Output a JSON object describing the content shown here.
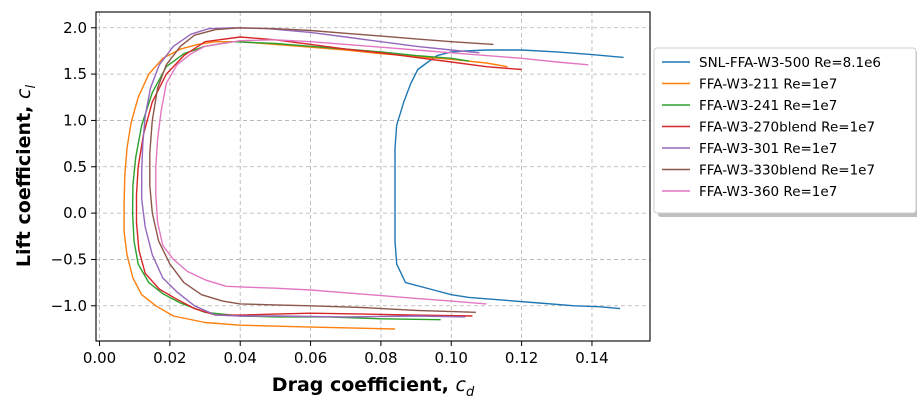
{
  "chart_data": {
    "type": "line",
    "xlabel": "Drag coefficient, ",
    "xlabel_symbol": "c",
    "xlabel_sub": "d",
    "ylabel": "Lift coefficient, ",
    "ylabel_symbol": "c",
    "ylabel_sub": "l",
    "xlim": [
      -0.001,
      0.1565
    ],
    "ylim": [
      -1.38,
      2.17
    ],
    "xticks": [
      0.0,
      0.02,
      0.04,
      0.06,
      0.08,
      0.1,
      0.12,
      0.14
    ],
    "xtick_labels": [
      "0.00",
      "0.02",
      "0.04",
      "0.06",
      "0.08",
      "0.10",
      "0.12",
      "0.14"
    ],
    "yticks": [
      -1.0,
      -0.5,
      0.0,
      0.5,
      1.0,
      1.5,
      2.0
    ],
    "ytick_labels": [
      "−1.0",
      "−0.5",
      "0.0",
      "0.5",
      "1.0",
      "1.5",
      "2.0"
    ],
    "grid": true,
    "legend_position": "outside-right",
    "series": [
      {
        "name": "SNL-FFA-W3-500 Re=8.1e6",
        "color": "#1f77b4",
        "x": [
          0.148,
          0.142,
          0.135,
          0.125,
          0.115,
          0.105,
          0.1,
          0.095,
          0.087,
          0.0845,
          0.084,
          0.084,
          0.084,
          0.084,
          0.0845,
          0.0865,
          0.0885,
          0.0905,
          0.093,
          0.096,
          0.1,
          0.104,
          0.11,
          0.12,
          0.13,
          0.14,
          0.149
        ],
        "y": [
          -1.03,
          -1.01,
          -1.0,
          -0.97,
          -0.94,
          -0.91,
          -0.88,
          -0.83,
          -0.75,
          -0.55,
          -0.3,
          0.0,
          0.3,
          0.7,
          0.95,
          1.2,
          1.4,
          1.55,
          1.62,
          1.7,
          1.74,
          1.75,
          1.76,
          1.76,
          1.74,
          1.71,
          1.68
        ]
      },
      {
        "name": "FFA-W3-211 Re=1e7",
        "color": "#ff7f0e",
        "x": [
          0.084,
          0.06,
          0.04,
          0.03,
          0.021,
          0.016,
          0.012,
          0.0095,
          0.0078,
          0.007,
          0.007,
          0.0072,
          0.0078,
          0.009,
          0.011,
          0.014,
          0.018,
          0.023,
          0.028,
          0.033,
          0.04,
          0.05,
          0.06,
          0.07,
          0.08,
          0.09,
          0.1,
          0.11,
          0.116
        ],
        "y": [
          -1.25,
          -1.23,
          -1.21,
          -1.18,
          -1.11,
          -1.0,
          -0.88,
          -0.7,
          -0.45,
          -0.2,
          0.1,
          0.4,
          0.7,
          0.98,
          1.25,
          1.5,
          1.67,
          1.77,
          1.82,
          1.85,
          1.85,
          1.82,
          1.79,
          1.76,
          1.72,
          1.69,
          1.66,
          1.62,
          1.58
        ]
      },
      {
        "name": "FFA-W3-241 Re=1e7",
        "color": "#2ca02c",
        "x": [
          0.097,
          0.08,
          0.065,
          0.05,
          0.04,
          0.03,
          0.023,
          0.018,
          0.014,
          0.011,
          0.0098,
          0.0094,
          0.0095,
          0.0103,
          0.012,
          0.015,
          0.019,
          0.024,
          0.03,
          0.038,
          0.05,
          0.06,
          0.07,
          0.08,
          0.09,
          0.1,
          0.105
        ],
        "y": [
          -1.15,
          -1.14,
          -1.12,
          -1.12,
          -1.11,
          -1.07,
          -0.97,
          -0.87,
          -0.75,
          -0.55,
          -0.3,
          0.0,
          0.3,
          0.6,
          0.95,
          1.3,
          1.58,
          1.72,
          1.8,
          1.85,
          1.83,
          1.8,
          1.77,
          1.74,
          1.7,
          1.67,
          1.64
        ]
      },
      {
        "name": "FFA-W3-270blend Re=1e7",
        "color": "#d62728",
        "x": [
          0.106,
          0.09,
          0.075,
          0.06,
          0.05,
          0.04,
          0.033,
          0.027,
          0.022,
          0.017,
          0.013,
          0.0112,
          0.0105,
          0.0105,
          0.011,
          0.0125,
          0.015,
          0.019,
          0.024,
          0.03,
          0.04,
          0.05,
          0.06,
          0.07,
          0.08,
          0.09,
          0.1,
          0.11,
          0.12
        ],
        "y": [
          -1.11,
          -1.1,
          -1.09,
          -1.08,
          -1.09,
          -1.1,
          -1.1,
          -1.03,
          -0.93,
          -0.82,
          -0.65,
          -0.4,
          -0.1,
          0.2,
          0.5,
          0.85,
          1.2,
          1.5,
          1.7,
          1.85,
          1.9,
          1.87,
          1.82,
          1.77,
          1.73,
          1.68,
          1.63,
          1.58,
          1.55
        ]
      },
      {
        "name": "FFA-W3-301 Re=1e7",
        "color": "#9467bd",
        "x": [
          0.104,
          0.09,
          0.07,
          0.05,
          0.04,
          0.033,
          0.027,
          0.022,
          0.018,
          0.015,
          0.013,
          0.012,
          0.012,
          0.0123,
          0.013,
          0.0145,
          0.017,
          0.021,
          0.026,
          0.031,
          0.038,
          0.048,
          0.06,
          0.07,
          0.08,
          0.09,
          0.1,
          0.108
        ],
        "y": [
          -1.12,
          -1.11,
          -1.12,
          -1.11,
          -1.11,
          -1.1,
          -1.0,
          -0.85,
          -0.7,
          -0.45,
          -0.15,
          0.15,
          0.45,
          0.75,
          1.05,
          1.35,
          1.6,
          1.8,
          1.93,
          1.99,
          2.0,
          1.99,
          1.95,
          1.9,
          1.85,
          1.8,
          1.76,
          1.73
        ]
      },
      {
        "name": "FFA-W3-330blend Re=1e7",
        "color": "#8c564b",
        "x": [
          0.107,
          0.09,
          0.075,
          0.06,
          0.05,
          0.04,
          0.035,
          0.029,
          0.024,
          0.02,
          0.0168,
          0.015,
          0.0143,
          0.0143,
          0.015,
          0.0165,
          0.019,
          0.023,
          0.027,
          0.033,
          0.04,
          0.05,
          0.06,
          0.07,
          0.08,
          0.09,
          0.1,
          0.112
        ],
        "y": [
          -1.07,
          -1.05,
          -1.02,
          -1.0,
          -0.99,
          -0.98,
          -0.95,
          -0.88,
          -0.75,
          -0.55,
          -0.3,
          0.0,
          0.3,
          0.65,
          1.0,
          1.35,
          1.6,
          1.8,
          1.92,
          1.98,
          2.0,
          1.99,
          1.97,
          1.94,
          1.91,
          1.88,
          1.85,
          1.82
        ]
      },
      {
        "name": "FFA-W3-360 Re=1e7",
        "color": "#e377c2",
        "x": [
          0.11,
          0.1,
          0.09,
          0.08,
          0.07,
          0.06,
          0.05,
          0.042,
          0.036,
          0.03,
          0.025,
          0.021,
          0.018,
          0.0165,
          0.016,
          0.016,
          0.0165,
          0.0175,
          0.019,
          0.022,
          0.026,
          0.03,
          0.04,
          0.05,
          0.06,
          0.07,
          0.08,
          0.09,
          0.1,
          0.11,
          0.12,
          0.13,
          0.139
        ],
        "y": [
          -0.98,
          -0.95,
          -0.92,
          -0.89,
          -0.86,
          -0.83,
          -0.81,
          -0.8,
          -0.79,
          -0.72,
          -0.63,
          -0.5,
          -0.35,
          -0.1,
          0.2,
          0.5,
          0.8,
          1.1,
          1.4,
          1.6,
          1.72,
          1.8,
          1.86,
          1.87,
          1.85,
          1.82,
          1.79,
          1.76,
          1.73,
          1.7,
          1.67,
          1.63,
          1.6
        ]
      }
    ]
  }
}
